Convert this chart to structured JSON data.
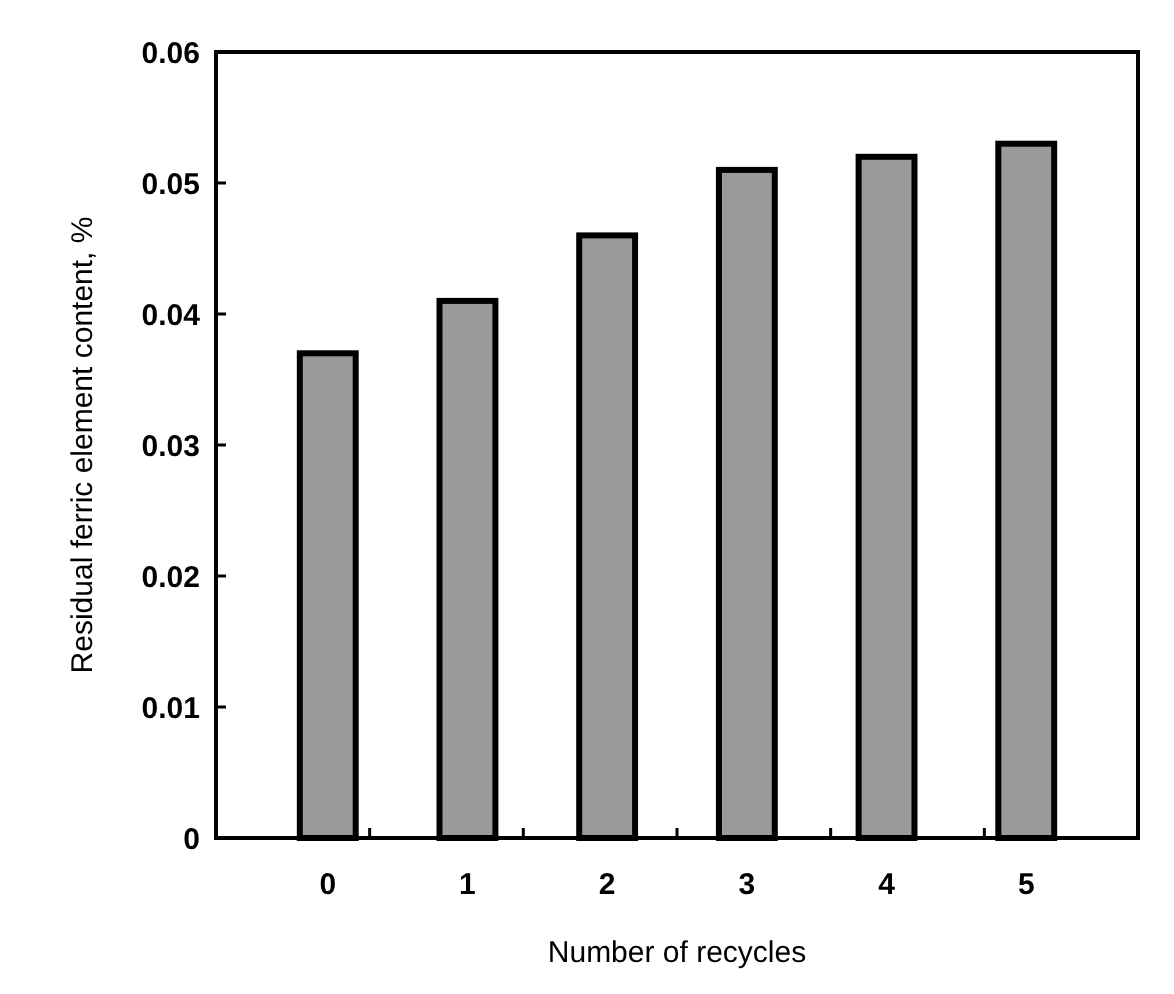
{
  "chart_data": {
    "type": "bar",
    "xlabel": "Number of recycles",
    "ylabel": "Residual ferric element content, %",
    "categories": [
      "0",
      "1",
      "2",
      "3",
      "4",
      "5"
    ],
    "values": [
      0.037,
      0.041,
      0.046,
      0.051,
      0.052,
      0.053
    ],
    "color": "#9a9a9a",
    "ylim": [
      0,
      0.06
    ],
    "yticks": [
      0,
      0.01,
      0.02,
      0.03,
      0.04,
      0.05,
      0.06
    ],
    "grid": false
  }
}
